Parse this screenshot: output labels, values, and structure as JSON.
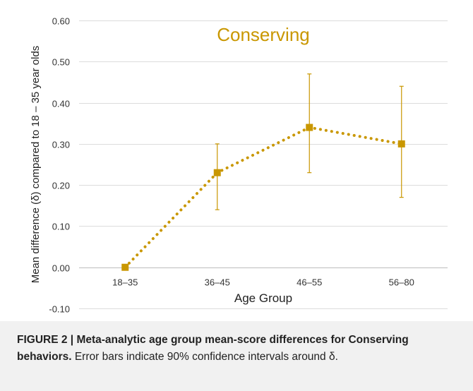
{
  "chart_data": {
    "type": "line",
    "title": "Conserving",
    "xlabel": "Age Group",
    "ylabel": "Mean difference (δ) compared to 18 – 35 year olds",
    "categories": [
      "18–35",
      "36–45",
      "46–55",
      "56–80"
    ],
    "series": [
      {
        "values": [
          0.0,
          0.23,
          0.34,
          0.3
        ],
        "error_low": [
          0.0,
          0.14,
          0.23,
          0.17
        ],
        "error_high": [
          0.0,
          0.3,
          0.47,
          0.44
        ]
      }
    ],
    "ylim": [
      -0.1,
      0.6
    ],
    "yticks": [
      "0.60",
      "0.50",
      "0.40",
      "0.30",
      "0.20",
      "0.10",
      "0.00",
      "-0.10"
    ],
    "ytick_values": [
      0.6,
      0.5,
      0.4,
      0.3,
      0.2,
      0.1,
      0.0,
      -0.1
    ],
    "grid": true,
    "line_style": "dotted",
    "marker": "square",
    "color": "#c99700",
    "title_color": "#c99700"
  },
  "caption": {
    "figure_label": "FIGURE 2 | ",
    "bold_text": "Meta-analytic age group mean-score differences for Conserving behaviors.",
    "normal_text": " Error bars indicate 90% confidence intervals around δ."
  }
}
